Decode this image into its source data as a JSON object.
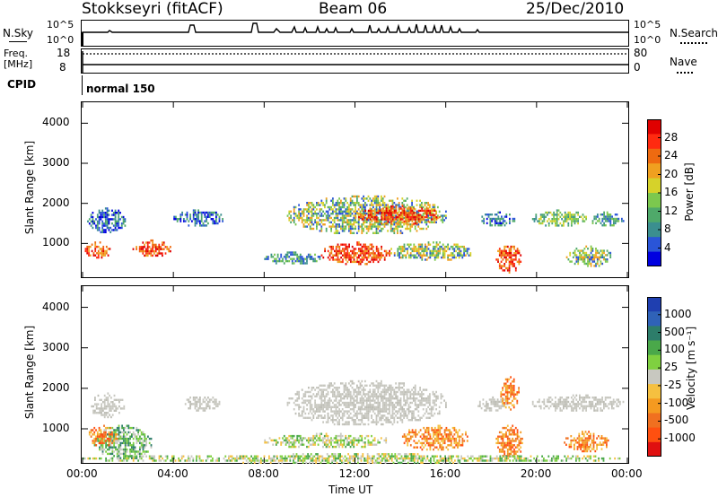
{
  "header": {
    "station": "Stokkseyri (fitACF)",
    "beam": "Beam 06",
    "date": "25/Dec/2010"
  },
  "status_panels": {
    "nsky_label": "N.Sky",
    "nsky_ticks": [
      "10^5",
      "10^0"
    ],
    "nsearch_label": "N.Search",
    "nsearch_ticks": [
      "10^5",
      "10^0"
    ],
    "freq_label": "Freq.",
    "freq_unit": "[MHz]",
    "freq_ticks": [
      "18",
      "8"
    ],
    "nave_label": "Nave",
    "nave_ticks": [
      "80",
      "0"
    ],
    "cpid_label": "CPID",
    "cpid_value": "normal 150"
  },
  "power_panel": {
    "ylabel": "Slant Range [km]",
    "yticks": [
      "4000",
      "3000",
      "2000",
      "1000"
    ],
    "colorbar_label": "Power [dB]",
    "colorbar_ticks": [
      "28",
      "24",
      "20",
      "16",
      "12",
      "8",
      "4"
    ],
    "colorbar_colors": [
      "#0000e0",
      "#2a55d8",
      "#3b8f8f",
      "#4fa96a",
      "#7cc84e",
      "#d6d22a",
      "#f0a020",
      "#ee6a10",
      "#ff2a10",
      "#e00000"
    ]
  },
  "velocity_panel": {
    "ylabel": "Slant Range [km]",
    "yticks": [
      "4000",
      "3000",
      "2000",
      "1000"
    ],
    "colorbar_label": "Velocity [m s⁻¹]",
    "colorbar_ticks": [
      "1000",
      "500",
      "100",
      "25",
      "-25",
      "-100",
      "-500",
      "-1000"
    ],
    "colorbar_colors": [
      "#1f3fb0",
      "#2f62b8",
      "#2d7d6a",
      "#4aa84a",
      "#7fd040",
      "#c8c8c0",
      "#f5c040",
      "#f59a20",
      "#f07020",
      "#ff5010",
      "#e01010"
    ]
  },
  "x_axis": {
    "ticks": [
      "00:00",
      "04:00",
      "08:00",
      "12:00",
      "16:00",
      "20:00",
      "00:00"
    ],
    "label": "Time UT"
  },
  "chart_data": {
    "type": "heatmap",
    "x_range_hours": [
      0,
      24
    ],
    "y_range_km": [
      180,
      4500
    ],
    "power_regions": [
      {
        "t0": 0.2,
        "t1": 1.9,
        "r0": 1300,
        "r1": 1900,
        "level": "8-12"
      },
      {
        "t0": 0.1,
        "t1": 1.2,
        "r0": 650,
        "r1": 1050,
        "level": "24-28"
      },
      {
        "t0": 2.2,
        "t1": 3.9,
        "r0": 700,
        "r1": 1100,
        "level": "24-28"
      },
      {
        "t0": 4.0,
        "t1": 6.2,
        "r0": 1450,
        "r1": 1850,
        "level": "8-12"
      },
      {
        "t0": 9.0,
        "t1": 16.0,
        "r0": 1250,
        "r1": 2200,
        "level": "16-24"
      },
      {
        "t0": 12.0,
        "t1": 15.8,
        "r0": 1500,
        "r1": 1950,
        "level": "24-28"
      },
      {
        "t0": 10.5,
        "t1": 13.5,
        "r0": 500,
        "r1": 1050,
        "level": "24-28"
      },
      {
        "t0": 8.0,
        "t1": 10.5,
        "r0": 500,
        "r1": 800,
        "level": "12-16"
      },
      {
        "t0": 13.5,
        "t1": 17.2,
        "r0": 600,
        "r1": 1050,
        "level": "16-24"
      },
      {
        "t0": 18.2,
        "t1": 19.3,
        "r0": 300,
        "r1": 1000,
        "level": "24-28"
      },
      {
        "t0": 17.5,
        "t1": 19.0,
        "r0": 1450,
        "r1": 1800,
        "level": "8-12"
      },
      {
        "t0": 19.8,
        "t1": 22.2,
        "r0": 1450,
        "r1": 1850,
        "level": "16-20"
      },
      {
        "t0": 22.3,
        "t1": 23.8,
        "r0": 1450,
        "r1": 1800,
        "level": "12-16"
      },
      {
        "t0": 21.3,
        "t1": 23.3,
        "r0": 450,
        "r1": 950,
        "level": "16-24"
      }
    ],
    "velocity_regions": [
      {
        "t0": 0.3,
        "t1": 1.8,
        "r0": 1300,
        "r1": 1900,
        "level": "25 to -25"
      },
      {
        "t0": 0.5,
        "t1": 3.0,
        "r0": 250,
        "r1": 1100,
        "level": "100 to 500"
      },
      {
        "t0": 0.2,
        "t1": 1.5,
        "r0": 600,
        "r1": 1100,
        "level": "-100 to -500"
      },
      {
        "t0": 4.5,
        "t1": 6.0,
        "r0": 1450,
        "r1": 1850,
        "level": "25 to -25"
      },
      {
        "t0": 9.0,
        "t1": 16.0,
        "r0": 1100,
        "r1": 2200,
        "level": "25 to -25"
      },
      {
        "t0": 8.0,
        "t1": 13.5,
        "r0": 550,
        "r1": 900,
        "level": "25 to 100"
      },
      {
        "t0": 14.0,
        "t1": 17.0,
        "r0": 500,
        "r1": 1100,
        "level": "-100 to -500"
      },
      {
        "t0": 17.4,
        "t1": 18.7,
        "r0": 1450,
        "r1": 1800,
        "level": "25 to -25"
      },
      {
        "t0": 18.2,
        "t1": 19.4,
        "r0": 300,
        "r1": 1100,
        "level": "-100 to -500"
      },
      {
        "t0": 18.4,
        "t1": 19.2,
        "r0": 1500,
        "r1": 2300,
        "level": "-100 to -500"
      },
      {
        "t0": 19.8,
        "t1": 23.8,
        "r0": 1450,
        "r1": 1850,
        "level": "25 to -25"
      },
      {
        "t0": 21.2,
        "t1": 23.2,
        "r0": 450,
        "r1": 950,
        "level": "-100 to -500"
      },
      {
        "t0": 0.0,
        "t1": 24.0,
        "r0": 180,
        "r1": 400,
        "level": "25 to 100"
      }
    ]
  }
}
